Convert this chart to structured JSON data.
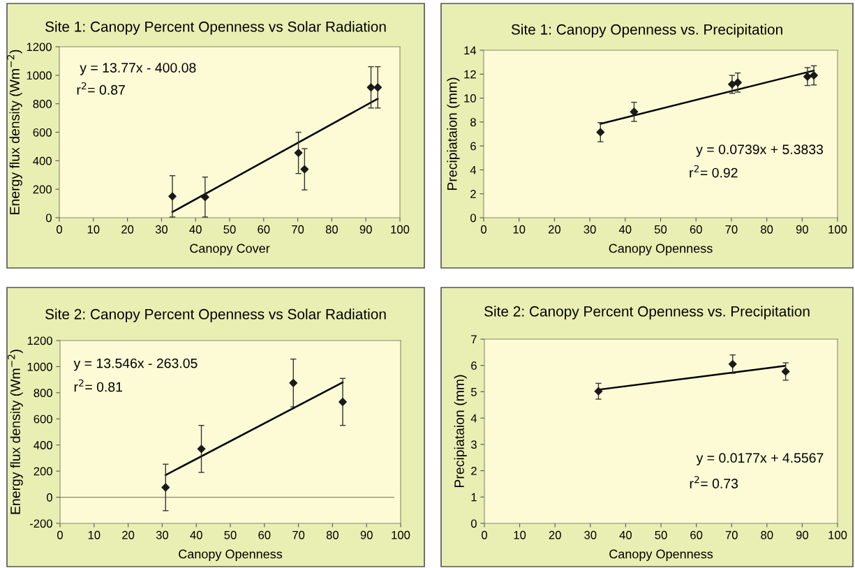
{
  "chart_data": [
    {
      "type": "scatter",
      "title": "Site 1: Canopy Percent Openness vs Solar Radiation",
      "xlabel": "Canopy Cover",
      "ylabel": "Energy flux density (Wm$^{−2}$)",
      "x": [
        33.2,
        42.8,
        70.2,
        72,
        91.5,
        93.5
      ],
      "marker": "diamond",
      "grid": false,
      "series": [
        {
          "color": "#1a1a1a",
          "values": [
            150,
            145,
            455,
            340,
            915,
            915
          ],
          "errors": [
            145,
            140,
            145,
            145,
            145,
            145
          ]
        },
        {
          "type": "line",
          "color": "#000000",
          "x": [
            33.2,
            93.5
          ],
          "values": [
            40,
            835
          ],
          "marker": "none"
        }
      ],
      "xlim": [
        0,
        100
      ],
      "xticks": [
        0,
        10,
        20,
        30,
        40,
        50,
        60,
        70,
        80,
        90,
        100
      ],
      "ylim": [
        0,
        1200
      ],
      "yticks": [
        0,
        200,
        400,
        600,
        800,
        1000,
        1200
      ],
      "annotations": [
        "y = 13.77x - 400.08",
        "r$^{2}$= 0.87"
      ]
    },
    {
      "type": "scatter",
      "title": "Site 1: Canopy Openness vs. Precipitation",
      "xlabel": "Canopy Openness",
      "ylabel": "Precipiataion (mm)",
      "x": [
        33,
        42.5,
        70.2,
        71.8,
        91.5,
        93.3
      ],
      "marker": "diamond",
      "grid": false,
      "series": [
        {
          "color": "#1a1a1a",
          "values": [
            7.15,
            8.85,
            11.15,
            11.3,
            11.8,
            11.9
          ],
          "errors": [
            0.8,
            0.8,
            0.75,
            0.8,
            0.75,
            0.8
          ]
        },
        {
          "type": "line",
          "color": "#000000",
          "x": [
            33,
            93.3
          ],
          "values": [
            7.85,
            12.3
          ],
          "marker": "none"
        }
      ],
      "xlim": [
        0,
        100
      ],
      "xticks": [
        0,
        10,
        20,
        30,
        40,
        50,
        60,
        70,
        80,
        90,
        100
      ],
      "ylim": [
        0,
        14
      ],
      "yticks": [
        0,
        2,
        4,
        6,
        8,
        10,
        12,
        14
      ],
      "annotations": [
        "y = 0.0739x + 5.3833",
        "r$^{2}$= 0.92"
      ]
    },
    {
      "type": "scatter",
      "title": "Site 2: Canopy Percent Openness vs Solar Radiation",
      "xlabel": "Canopy Openness",
      "ylabel": "Energy flux density (Wm$^{−2}$)",
      "x": [
        31,
        41.5,
        68.5,
        83
      ],
      "marker": "diamond",
      "grid": false,
      "series": [
        {
          "color": "#1a1a1a",
          "values": [
            75,
            370,
            875,
            730
          ],
          "errors": [
            178,
            180,
            183,
            180
          ]
        },
        {
          "type": "line",
          "color": "#000000",
          "x": [
            31,
            83
          ],
          "values": [
            170,
            880
          ],
          "marker": "none"
        }
      ],
      "xlim": [
        0,
        100
      ],
      "xticks": [
        0,
        10,
        20,
        30,
        40,
        50,
        60,
        70,
        80,
        90,
        100
      ],
      "ylim": [
        -200,
        1200
      ],
      "yticks": [
        -200,
        0,
        200,
        400,
        600,
        800,
        1000,
        1200
      ],
      "ref_lines": [
        {
          "axis": "y",
          "value": 0,
          "color": "#8a8a6a"
        }
      ],
      "annotations": [
        "y = 13.546x - 263.05",
        "r$^{2}$= 0.81"
      ]
    },
    {
      "type": "scatter",
      "title": "Site 2: Canopy Percent Openness vs. Precipitation",
      "xlabel": "Canopy Openness",
      "ylabel": "Precipiataion (mm)",
      "x": [
        32.3,
        70.3,
        85.3
      ],
      "marker": "diamond",
      "grid": false,
      "series": [
        {
          "color": "#1a1a1a",
          "values": [
            5.02,
            6.05,
            5.77
          ],
          "errors": [
            0.3,
            0.35,
            0.33
          ]
        },
        {
          "type": "line",
          "color": "#000000",
          "x": [
            32.3,
            85
          ],
          "values": [
            5.08,
            5.98
          ],
          "marker": "none"
        }
      ],
      "xlim": [
        0,
        100
      ],
      "xticks": [
        0,
        10,
        20,
        30,
        40,
        50,
        60,
        70,
        80,
        90,
        100
      ],
      "ylim": [
        0,
        7
      ],
      "yticks": [
        0,
        1,
        2,
        3,
        4,
        5,
        6,
        7
      ],
      "annotations": [
        "y = 0.0177x + 4.5567",
        "r$^{2}$= 0.73"
      ]
    }
  ]
}
